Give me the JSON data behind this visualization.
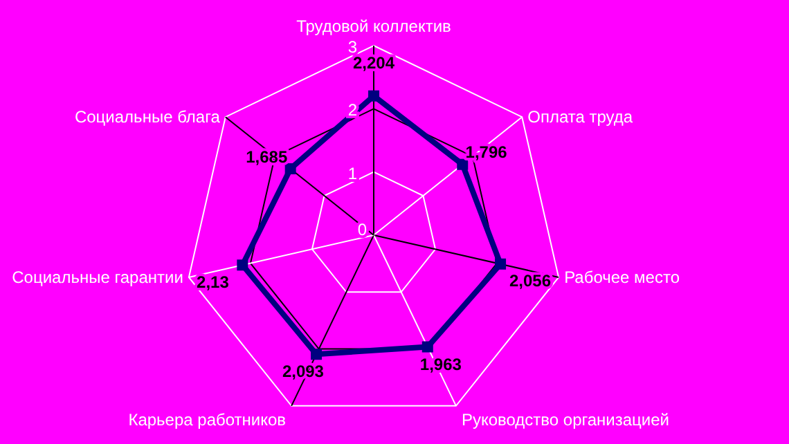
{
  "chart_data": {
    "type": "radar",
    "categories": [
      "Трудовой коллектив",
      "Оплата труда",
      "Рабочее место",
      "Руководство организацией",
      "Карьера работников",
      "Социальные гарантии",
      "Социальные блага"
    ],
    "series": [
      {
        "color": "#000080",
        "values": [
          2.204,
          1.796,
          2.056,
          1.963,
          2.093,
          2.13,
          1.685
        ]
      }
    ],
    "value_labels": [
      "2,204",
      "1,796",
      "2,056",
      "1,963",
      "2,093",
      "2,13",
      "1,685"
    ],
    "ylim": [
      0,
      3
    ],
    "yticks": [
      0,
      1,
      2,
      3
    ],
    "grid": true,
    "marker": "square"
  }
}
